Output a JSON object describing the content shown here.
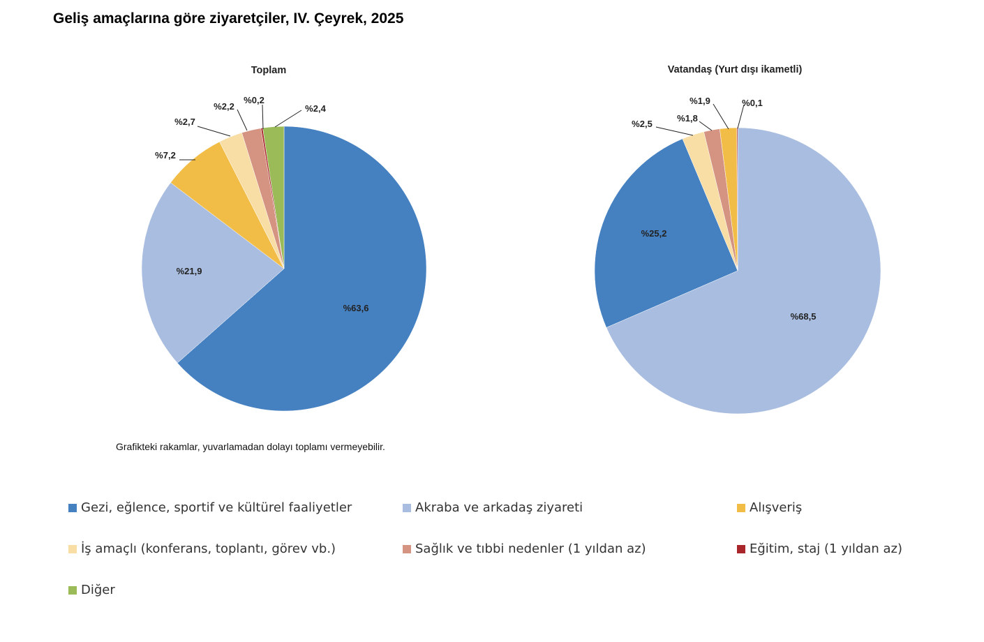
{
  "title": "Geliş amaçlarına göre ziyaretçiler, IV. Çeyrek, 2025",
  "note": "Grafikteki rakamlar, yuvarlamadan dolayı toplamı vermeyebilir.",
  "legend": [
    {
      "label": "Gezi, eğlence, sportif ve kültürel faaliyetler",
      "color": "#4580c1"
    },
    {
      "label": "Akraba ve arkadaş ziyareti",
      "color": "#a9bde0"
    },
    {
      "label": "Alışveriş",
      "color": "#f2bd46"
    },
    {
      "label": "İş amaçlı (konferans, toplantı, görev vb.)",
      "color": "#f8dea4"
    },
    {
      "label": "Sağlık ve tıbbi nedenler (1 yıldan az)",
      "color": "#d59482"
    },
    {
      "label": "Eğitim, staj (1 yıldan az)",
      "color": "#a9262a"
    },
    {
      "label": "Diğer",
      "color": "#9bbb59"
    }
  ],
  "chart_data": [
    {
      "type": "pie",
      "title": "Toplam",
      "start": "top, clockwise",
      "slices": [
        {
          "category": 0,
          "value": 63.6,
          "label": "%63,6"
        },
        {
          "category": 1,
          "value": 21.9,
          "label": "%21,9"
        },
        {
          "category": 2,
          "value": 7.2,
          "label": "%7,2"
        },
        {
          "category": 3,
          "value": 2.7,
          "label": "%2,7"
        },
        {
          "category": 4,
          "value": 2.2,
          "label": "%2,2"
        },
        {
          "category": 5,
          "value": 0.2,
          "label": "%0,2"
        },
        {
          "category": 6,
          "value": 2.4,
          "label": "%2,4"
        }
      ]
    },
    {
      "type": "pie",
      "title": "Vatandaş (Yurt dışı ikametli)",
      "start": "top, clockwise",
      "slices": [
        {
          "category": 1,
          "value": 68.5,
          "label": "%68,5"
        },
        {
          "category": 0,
          "value": 25.2,
          "label": "%25,2"
        },
        {
          "category": 3,
          "value": 2.5,
          "label": "%2,5"
        },
        {
          "category": 4,
          "value": 1.8,
          "label": "%1,8"
        },
        {
          "category": 2,
          "value": 1.9,
          "label": "%1,9"
        },
        {
          "category": 5,
          "value": 0.1,
          "label": "%0,1"
        }
      ]
    }
  ]
}
